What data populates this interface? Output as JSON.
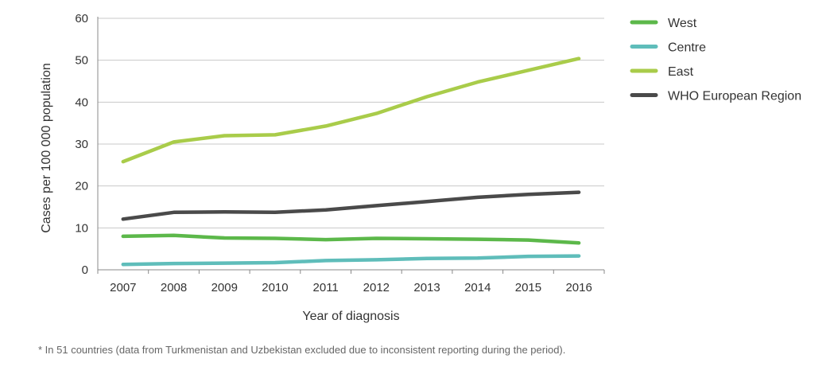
{
  "chart_data": {
    "type": "line",
    "x": [
      "2007",
      "2008",
      "2009",
      "2010",
      "2011",
      "2012",
      "2013",
      "2014",
      "2015",
      "2016"
    ],
    "ylim": [
      0,
      60
    ],
    "yticks": [
      "0",
      "10",
      "20",
      "30",
      "40",
      "50",
      "60"
    ],
    "xlabel": "Year of diagnosis",
    "ylabel": "Cases per 100 000 population",
    "grid": "horizontal",
    "legend_position": "right",
    "series": [
      {
        "name": "West",
        "color": "#5cb84a",
        "values": [
          8.0,
          8.2,
          7.6,
          7.5,
          7.2,
          7.5,
          7.4,
          7.3,
          7.1,
          6.4
        ]
      },
      {
        "name": "Centre",
        "color": "#5fbdba",
        "values": [
          1.3,
          1.5,
          1.6,
          1.7,
          2.2,
          2.4,
          2.7,
          2.8,
          3.2,
          3.3
        ]
      },
      {
        "name": "East",
        "color": "#a9cc4a",
        "values": [
          25.8,
          30.5,
          32.0,
          32.2,
          34.3,
          37.3,
          41.3,
          44.8,
          47.6,
          50.4
        ]
      },
      {
        "name": "WHO European Region",
        "color": "#4a4a4a",
        "values": [
          12.1,
          13.7,
          13.8,
          13.7,
          14.3,
          15.3,
          16.3,
          17.3,
          18.0,
          18.5
        ]
      }
    ]
  },
  "footnote": "* In 51 countries (data from Turkmenistan and Uzbekistan excluded due to inconsistent reporting during the period)."
}
